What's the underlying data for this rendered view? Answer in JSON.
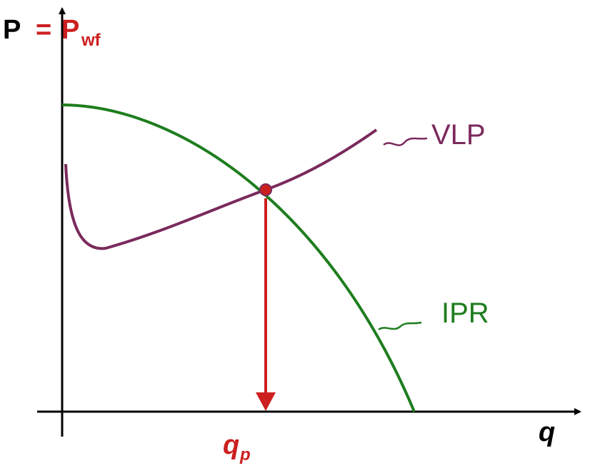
{
  "axes": {
    "y_label": {
      "symbol": "P",
      "equals": "=",
      "main": "P",
      "subscript": "wf"
    },
    "x_label": "q"
  },
  "curves": [
    {
      "label": "VLP"
    },
    {
      "label": "IPR"
    }
  ],
  "operating_point": {
    "symbol": "q",
    "subscript": "p"
  }
}
